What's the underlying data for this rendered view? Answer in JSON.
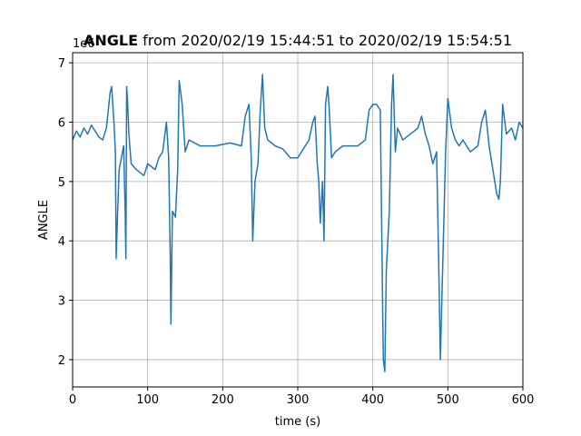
{
  "chart_data": {
    "type": "line",
    "title": {
      "bold": "ANGLE",
      "rest": "from 2020/02/19 15:44:51 to 2020/02/19 15:54:51"
    },
    "offset_text": "1e6",
    "xlabel": "time (s)",
    "ylabel": "ANGLE",
    "x": [
      0,
      5,
      10,
      15,
      20,
      25,
      30,
      35,
      40,
      45,
      50,
      52,
      55,
      57,
      58,
      60,
      62,
      65,
      68,
      70,
      71,
      72,
      73,
      75,
      78,
      85,
      95,
      100,
      110,
      115,
      120,
      125,
      128,
      130,
      131,
      133,
      137,
      140,
      142,
      146,
      150,
      155,
      170,
      190,
      210,
      225,
      230,
      235,
      238,
      240,
      243,
      247,
      250,
      253,
      256,
      260,
      270,
      280,
      290,
      300,
      310,
      315,
      320,
      323,
      326,
      328,
      330,
      333,
      335,
      337,
      340,
      342,
      345,
      350,
      360,
      370,
      380,
      390,
      395,
      400,
      405,
      410,
      413,
      414,
      416,
      418,
      420,
      422,
      425,
      427,
      430,
      433,
      440,
      450,
      460,
      465,
      470,
      475,
      480,
      485,
      488,
      490,
      492,
      495,
      497,
      500,
      505,
      510,
      515,
      520,
      530,
      540,
      545,
      550,
      555,
      560,
      565,
      568,
      570,
      573,
      578,
      585,
      590,
      595,
      600
    ],
    "values": [
      5.7,
      5.85,
      5.75,
      5.9,
      5.8,
      5.95,
      5.85,
      5.75,
      5.7,
      5.9,
      6.5,
      6.6,
      6.0,
      5.5,
      3.7,
      4.5,
      5.2,
      5.4,
      5.6,
      4.5,
      3.7,
      6.6,
      6.4,
      5.8,
      5.3,
      5.2,
      5.1,
      5.3,
      5.2,
      5.4,
      5.5,
      6.0,
      5.4,
      3.8,
      2.6,
      4.5,
      4.4,
      5.2,
      6.7,
      6.3,
      5.5,
      5.7,
      5.6,
      5.6,
      5.65,
      5.6,
      6.1,
      6.3,
      5.4,
      4.0,
      5.0,
      5.3,
      6.2,
      6.8,
      5.9,
      5.7,
      5.6,
      5.55,
      5.4,
      5.4,
      5.6,
      5.7,
      6.0,
      6.1,
      5.3,
      5.0,
      4.3,
      5.0,
      4.0,
      6.3,
      6.6,
      6.2,
      5.4,
      5.5,
      5.6,
      5.6,
      5.6,
      5.7,
      6.2,
      6.3,
      6.3,
      6.2,
      3.0,
      2.0,
      1.8,
      3.5,
      4.0,
      4.5,
      6.3,
      6.8,
      5.5,
      5.9,
      5.7,
      5.8,
      5.9,
      6.1,
      5.8,
      5.6,
      5.3,
      5.5,
      3.5,
      2.0,
      3.0,
      4.5,
      5.5,
      6.4,
      5.9,
      5.7,
      5.6,
      5.7,
      5.5,
      5.6,
      6.0,
      6.2,
      5.6,
      5.2,
      4.8,
      4.7,
      5.0,
      6.3,
      5.8,
      5.9,
      5.7,
      6.0,
      5.9
    ],
    "color": "#1f77b4",
    "xlim": [
      0,
      600
    ],
    "xticks": [
      0,
      100,
      200,
      300,
      400,
      500,
      600
    ],
    "ylim": [
      1.54,
      7.17
    ],
    "yticks": [
      2,
      3,
      4,
      5,
      6,
      7
    ],
    "grid": true
  }
}
